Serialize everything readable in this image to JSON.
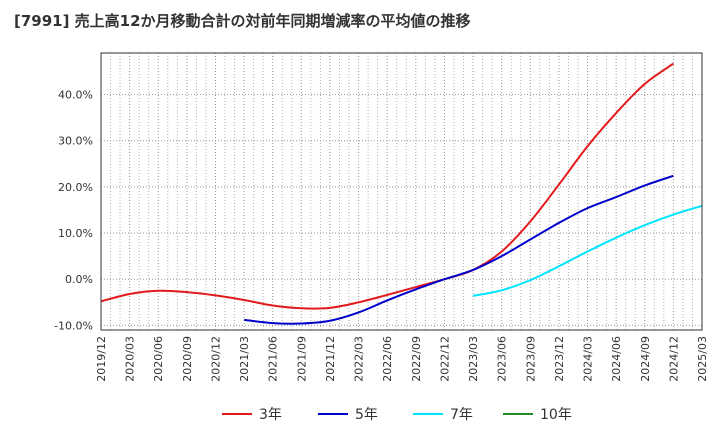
{
  "chart_data": {
    "type": "line",
    "title": "[7991]  売上高12か月移動合計の対前年同期増減率の平均値の推移",
    "xlabel": "",
    "ylabel": "",
    "ylim": [
      -11,
      49
    ],
    "y_ticks": [
      -10,
      0,
      10,
      20,
      30,
      40
    ],
    "y_tick_labels": [
      "-10.0%",
      "0.0%",
      "10.0%",
      "20.0%",
      "30.0%",
      "40.0%"
    ],
    "x_ticks": [
      "2019/12",
      "2020/03",
      "2020/06",
      "2020/09",
      "2020/12",
      "2021/03",
      "2021/06",
      "2021/09",
      "2021/12",
      "2022/03",
      "2022/06",
      "2022/09",
      "2022/12",
      "2023/03",
      "2023/06",
      "2023/09",
      "2023/12",
      "2024/03",
      "2024/06",
      "2024/09",
      "2024/12",
      "2025/03"
    ],
    "grid": true,
    "legend_position": "bottom",
    "series": [
      {
        "name": "3年",
        "color": "#e31a1c",
        "points": [
          [
            "2019/12",
            -4.8
          ],
          [
            "2020/03",
            -3.2
          ],
          [
            "2020/06",
            -2.5
          ],
          [
            "2020/09",
            -2.8
          ],
          [
            "2020/12",
            -3.5
          ],
          [
            "2021/03",
            -4.5
          ],
          [
            "2021/06",
            -5.7
          ],
          [
            "2021/09",
            -6.3
          ],
          [
            "2021/12",
            -6.2
          ],
          [
            "2022/03",
            -5.0
          ],
          [
            "2022/06",
            -3.4
          ],
          [
            "2022/09",
            -1.7
          ],
          [
            "2022/12",
            0.0
          ],
          [
            "2023/03",
            2.0
          ],
          [
            "2023/06",
            6.0
          ],
          [
            "2023/09",
            12.5
          ],
          [
            "2023/12",
            20.5
          ],
          [
            "2024/03",
            28.8
          ],
          [
            "2024/06",
            36.0
          ],
          [
            "2024/09",
            42.3
          ],
          [
            "2024/12",
            46.7
          ]
        ]
      },
      {
        "name": "5年",
        "color": "#0000cc",
        "points": [
          [
            "2021/03",
            -8.8
          ],
          [
            "2021/06",
            -9.5
          ],
          [
            "2021/09",
            -9.6
          ],
          [
            "2021/12",
            -9.0
          ],
          [
            "2022/03",
            -7.2
          ],
          [
            "2022/06",
            -4.6
          ],
          [
            "2022/09",
            -2.2
          ],
          [
            "2022/12",
            0.0
          ],
          [
            "2023/03",
            2.0
          ],
          [
            "2023/06",
            5.0
          ],
          [
            "2023/09",
            8.6
          ],
          [
            "2023/12",
            12.2
          ],
          [
            "2024/03",
            15.4
          ],
          [
            "2024/06",
            17.8
          ],
          [
            "2024/09",
            20.3
          ],
          [
            "2024/12",
            22.4
          ]
        ]
      },
      {
        "name": "7年",
        "color": "#00e5ff",
        "points": [
          [
            "2023/03",
            -3.6
          ],
          [
            "2023/06",
            -2.4
          ],
          [
            "2023/09",
            -0.2
          ],
          [
            "2023/12",
            2.8
          ],
          [
            "2024/03",
            6.0
          ],
          [
            "2024/06",
            9.0
          ],
          [
            "2024/09",
            11.7
          ],
          [
            "2024/12",
            14.0
          ],
          [
            "2025/03",
            15.9
          ]
        ]
      },
      {
        "name": "10年",
        "color": "#228b22",
        "points": []
      }
    ]
  }
}
